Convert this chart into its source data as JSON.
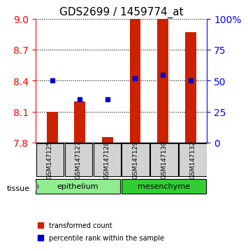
{
  "title": "GDS2699 / 1459774_at",
  "samples": [
    "GSM147125",
    "GSM147127",
    "GSM147128",
    "GSM147129",
    "GSM147130",
    "GSM147132"
  ],
  "red_values": [
    8.1,
    8.2,
    7.85,
    9.0,
    9.0,
    8.87
  ],
  "blue_percentiles": [
    50,
    35,
    35,
    52,
    55,
    50
  ],
  "y_min": 7.8,
  "y_max": 9.0,
  "y_ticks": [
    7.8,
    8.1,
    8.4,
    8.7,
    9.0
  ],
  "right_y_ticks": [
    0,
    25,
    50,
    75,
    100
  ],
  "tissue_groups": [
    {
      "label": "epithelium",
      "count": 3,
      "color": "#90EE90"
    },
    {
      "label": "mesenchyme",
      "count": 3,
      "color": "#32CD32"
    }
  ],
  "bar_color": "#CC2200",
  "dot_color": "#0000CC",
  "bar_width": 0.4,
  "label_bg_color": "#d3d3d3",
  "red_label": "transformed count",
  "blue_label": "percentile rank within the sample",
  "tissue_label": "tissue"
}
